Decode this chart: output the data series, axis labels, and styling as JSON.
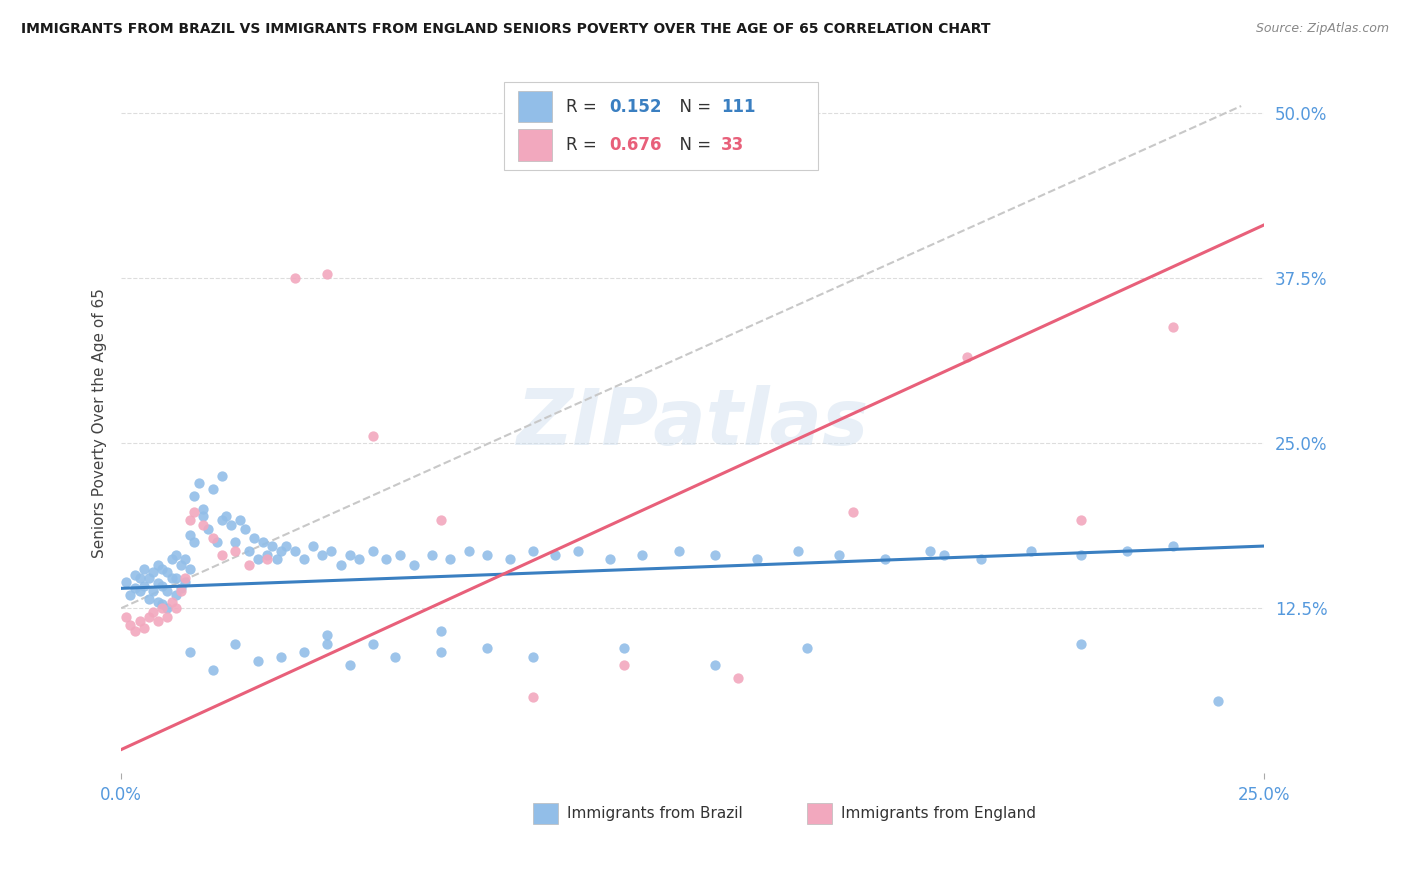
{
  "title": "IMMIGRANTS FROM BRAZIL VS IMMIGRANTS FROM ENGLAND SENIORS POVERTY OVER THE AGE OF 65 CORRELATION CHART",
  "source": "Source: ZipAtlas.com",
  "ylabel_label": "Seniors Poverty Over the Age of 65",
  "ylabel_ticks_labels": [
    "12.5%",
    "25.0%",
    "37.5%",
    "50.0%"
  ],
  "ylabel_ticks_values": [
    0.125,
    0.25,
    0.375,
    0.5
  ],
  "xlim": [
    0.0,
    0.25
  ],
  "ylim": [
    0.0,
    0.53
  ],
  "r_brazil": 0.152,
  "n_brazil": 111,
  "r_england": 0.676,
  "n_england": 33,
  "color_brazil": "#92BEE8",
  "color_england": "#F2A8BE",
  "color_brazil_line": "#3A7FC1",
  "color_england_line": "#E8607A",
  "color_dashed_line": "#C8C8C8",
  "background_color": "#FFFFFF",
  "grid_color": "#DDDDDD",
  "brazil_x": [
    0.001,
    0.002,
    0.003,
    0.003,
    0.004,
    0.004,
    0.005,
    0.005,
    0.006,
    0.006,
    0.007,
    0.007,
    0.008,
    0.008,
    0.008,
    0.009,
    0.009,
    0.009,
    0.01,
    0.01,
    0.01,
    0.011,
    0.011,
    0.012,
    0.012,
    0.012,
    0.013,
    0.013,
    0.014,
    0.014,
    0.015,
    0.015,
    0.016,
    0.016,
    0.017,
    0.018,
    0.018,
    0.019,
    0.02,
    0.021,
    0.022,
    0.022,
    0.023,
    0.024,
    0.025,
    0.026,
    0.027,
    0.028,
    0.029,
    0.03,
    0.031,
    0.032,
    0.033,
    0.034,
    0.035,
    0.036,
    0.038,
    0.04,
    0.042,
    0.044,
    0.046,
    0.048,
    0.05,
    0.052,
    0.055,
    0.058,
    0.061,
    0.064,
    0.068,
    0.072,
    0.076,
    0.08,
    0.085,
    0.09,
    0.095,
    0.1,
    0.107,
    0.114,
    0.122,
    0.13,
    0.139,
    0.148,
    0.157,
    0.167,
    0.177,
    0.188,
    0.199,
    0.21,
    0.22,
    0.23,
    0.015,
    0.02,
    0.025,
    0.03,
    0.035,
    0.04,
    0.045,
    0.05,
    0.06,
    0.07,
    0.08,
    0.09,
    0.11,
    0.13,
    0.15,
    0.18,
    0.21,
    0.24,
    0.045,
    0.055,
    0.07
  ],
  "brazil_y": [
    0.145,
    0.135,
    0.14,
    0.15,
    0.138,
    0.148,
    0.142,
    0.155,
    0.132,
    0.148,
    0.138,
    0.152,
    0.13,
    0.144,
    0.158,
    0.128,
    0.142,
    0.155,
    0.125,
    0.138,
    0.152,
    0.148,
    0.162,
    0.135,
    0.148,
    0.165,
    0.14,
    0.158,
    0.145,
    0.162,
    0.18,
    0.155,
    0.21,
    0.175,
    0.22,
    0.195,
    0.2,
    0.185,
    0.215,
    0.175,
    0.225,
    0.192,
    0.195,
    0.188,
    0.175,
    0.192,
    0.185,
    0.168,
    0.178,
    0.162,
    0.175,
    0.165,
    0.172,
    0.162,
    0.168,
    0.172,
    0.168,
    0.162,
    0.172,
    0.165,
    0.168,
    0.158,
    0.165,
    0.162,
    0.168,
    0.162,
    0.165,
    0.158,
    0.165,
    0.162,
    0.168,
    0.165,
    0.162,
    0.168,
    0.165,
    0.168,
    0.162,
    0.165,
    0.168,
    0.165,
    0.162,
    0.168,
    0.165,
    0.162,
    0.168,
    0.162,
    0.168,
    0.165,
    0.168,
    0.172,
    0.092,
    0.078,
    0.098,
    0.085,
    0.088,
    0.092,
    0.098,
    0.082,
    0.088,
    0.092,
    0.095,
    0.088,
    0.095,
    0.082,
    0.095,
    0.165,
    0.098,
    0.055,
    0.105,
    0.098,
    0.108
  ],
  "england_x": [
    0.001,
    0.002,
    0.003,
    0.004,
    0.005,
    0.006,
    0.007,
    0.008,
    0.009,
    0.01,
    0.011,
    0.012,
    0.013,
    0.014,
    0.015,
    0.016,
    0.018,
    0.02,
    0.022,
    0.025,
    0.028,
    0.032,
    0.038,
    0.045,
    0.055,
    0.07,
    0.09,
    0.11,
    0.135,
    0.16,
    0.185,
    0.21,
    0.23
  ],
  "england_y": [
    0.118,
    0.112,
    0.108,
    0.115,
    0.11,
    0.118,
    0.122,
    0.115,
    0.125,
    0.118,
    0.13,
    0.125,
    0.138,
    0.148,
    0.192,
    0.198,
    0.188,
    0.178,
    0.165,
    0.168,
    0.158,
    0.162,
    0.375,
    0.378,
    0.255,
    0.192,
    0.058,
    0.082,
    0.072,
    0.198,
    0.315,
    0.192,
    0.338
  ],
  "brazil_line_x0": 0.0,
  "brazil_line_x1": 0.25,
  "brazil_line_y0": 0.14,
  "brazil_line_y1": 0.172,
  "england_line_x0": 0.0,
  "england_line_x1": 0.25,
  "england_line_y0": 0.018,
  "england_line_y1": 0.415,
  "dash_line_x0": 0.0,
  "dash_line_x1": 0.245,
  "dash_line_y0": 0.125,
  "dash_line_y1": 0.505
}
